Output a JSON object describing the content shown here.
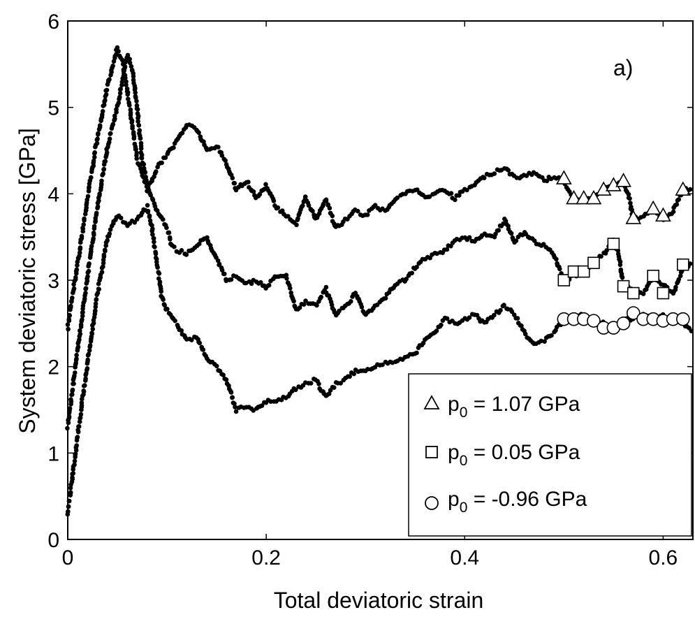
{
  "chart_data": {
    "type": "scatter",
    "title": "",
    "panel_label": "a)",
    "xlabel": "Total deviatoric strain",
    "ylabel": "System deviatoric stress [GPa]",
    "xlim": [
      0,
      0.63
    ],
    "ylim": [
      0,
      6
    ],
    "xticks": [
      0,
      0.2,
      0.4,
      0.6
    ],
    "xtick_labels": [
      "0",
      "0.2",
      "0.4",
      "0.6"
    ],
    "yticks": [
      0,
      1,
      2,
      3,
      4,
      5,
      6
    ],
    "ytick_labels": [
      "0",
      "1",
      "2",
      "3",
      "4",
      "5",
      "6"
    ],
    "grid": false,
    "legend_position": "bottom-right",
    "series": [
      {
        "name": "p0 = 1.07 GPa",
        "legend_main": "p",
        "legend_sub": "0",
        "legend_rest": " = 1.07 GPa",
        "marker": "triangle",
        "curve": [
          [
            0,
            2.45
          ],
          [
            0.01,
            3.2
          ],
          [
            0.02,
            3.95
          ],
          [
            0.03,
            4.65
          ],
          [
            0.04,
            5.25
          ],
          [
            0.05,
            5.68
          ],
          [
            0.055,
            5.55
          ],
          [
            0.06,
            5.2
          ],
          [
            0.07,
            4.4
          ],
          [
            0.08,
            4.05
          ],
          [
            0.09,
            4.3
          ],
          [
            0.1,
            4.45
          ],
          [
            0.11,
            4.6
          ],
          [
            0.12,
            4.8
          ],
          [
            0.13,
            4.75
          ],
          [
            0.14,
            4.5
          ],
          [
            0.15,
            4.55
          ],
          [
            0.16,
            4.35
          ],
          [
            0.17,
            4.05
          ],
          [
            0.18,
            4.15
          ],
          [
            0.19,
            3.95
          ],
          [
            0.2,
            4.1
          ],
          [
            0.21,
            3.85
          ],
          [
            0.22,
            3.75
          ],
          [
            0.23,
            3.65
          ],
          [
            0.24,
            3.95
          ],
          [
            0.25,
            3.7
          ],
          [
            0.26,
            3.95
          ],
          [
            0.27,
            3.6
          ],
          [
            0.28,
            3.7
          ],
          [
            0.29,
            3.8
          ],
          [
            0.3,
            3.75
          ],
          [
            0.31,
            3.85
          ],
          [
            0.32,
            3.8
          ],
          [
            0.33,
            3.95
          ],
          [
            0.34,
            4.0
          ],
          [
            0.35,
            4.05
          ],
          [
            0.36,
            3.95
          ],
          [
            0.37,
            4.0
          ],
          [
            0.38,
            4.05
          ],
          [
            0.39,
            3.95
          ],
          [
            0.4,
            4.05
          ],
          [
            0.41,
            4.1
          ],
          [
            0.42,
            4.2
          ],
          [
            0.43,
            4.25
          ],
          [
            0.44,
            4.3
          ],
          [
            0.45,
            4.2
          ],
          [
            0.46,
            4.2
          ],
          [
            0.47,
            4.25
          ],
          [
            0.48,
            4.15
          ],
          [
            0.49,
            4.2
          ],
          [
            0.5,
            4.15
          ],
          [
            0.51,
            3.95
          ],
          [
            0.52,
            3.95
          ],
          [
            0.53,
            3.95
          ],
          [
            0.54,
            4.05
          ],
          [
            0.55,
            4.1
          ],
          [
            0.56,
            4.15
          ],
          [
            0.565,
            4.0
          ],
          [
            0.57,
            3.7
          ],
          [
            0.58,
            3.75
          ],
          [
            0.59,
            3.8
          ],
          [
            0.6,
            3.7
          ],
          [
            0.61,
            3.8
          ],
          [
            0.62,
            4.05
          ],
          [
            0.63,
            4.05
          ]
        ],
        "markers": [
          [
            0.5,
            4.18
          ],
          [
            0.51,
            3.95
          ],
          [
            0.52,
            3.95
          ],
          [
            0.53,
            3.95
          ],
          [
            0.54,
            4.05
          ],
          [
            0.55,
            4.1
          ],
          [
            0.56,
            4.15
          ],
          [
            0.57,
            3.72
          ],
          [
            0.59,
            3.83
          ],
          [
            0.6,
            3.75
          ],
          [
            0.62,
            4.05
          ]
        ]
      },
      {
        "name": "p0 = 0.05 GPa",
        "legend_main": "p",
        "legend_sub": "0",
        "legend_rest": " = 0.05 GPa",
        "marker": "square",
        "curve": [
          [
            0,
            1.3
          ],
          [
            0.01,
            2.2
          ],
          [
            0.02,
            3.05
          ],
          [
            0.03,
            3.85
          ],
          [
            0.04,
            4.55
          ],
          [
            0.05,
            5.0
          ],
          [
            0.06,
            5.6
          ],
          [
            0.065,
            5.45
          ],
          [
            0.07,
            5.0
          ],
          [
            0.075,
            4.4
          ],
          [
            0.08,
            4.1
          ],
          [
            0.09,
            3.8
          ],
          [
            0.1,
            3.6
          ],
          [
            0.105,
            3.4
          ],
          [
            0.11,
            3.35
          ],
          [
            0.12,
            3.3
          ],
          [
            0.13,
            3.4
          ],
          [
            0.14,
            3.5
          ],
          [
            0.15,
            3.25
          ],
          [
            0.16,
            3.0
          ],
          [
            0.17,
            3.05
          ],
          [
            0.18,
            2.95
          ],
          [
            0.19,
            3.0
          ],
          [
            0.2,
            2.9
          ],
          [
            0.21,
            3.05
          ],
          [
            0.22,
            3.05
          ],
          [
            0.23,
            2.65
          ],
          [
            0.24,
            2.75
          ],
          [
            0.25,
            2.7
          ],
          [
            0.26,
            2.9
          ],
          [
            0.27,
            2.6
          ],
          [
            0.28,
            2.7
          ],
          [
            0.29,
            2.85
          ],
          [
            0.3,
            2.6
          ],
          [
            0.31,
            2.7
          ],
          [
            0.32,
            2.8
          ],
          [
            0.33,
            2.95
          ],
          [
            0.34,
            3.0
          ],
          [
            0.35,
            3.15
          ],
          [
            0.36,
            3.25
          ],
          [
            0.37,
            3.3
          ],
          [
            0.38,
            3.35
          ],
          [
            0.39,
            3.45
          ],
          [
            0.4,
            3.5
          ],
          [
            0.41,
            3.45
          ],
          [
            0.42,
            3.55
          ],
          [
            0.43,
            3.5
          ],
          [
            0.44,
            3.7
          ],
          [
            0.45,
            3.45
          ],
          [
            0.46,
            3.55
          ],
          [
            0.47,
            3.45
          ],
          [
            0.48,
            3.4
          ],
          [
            0.49,
            3.3
          ],
          [
            0.5,
            3.0
          ],
          [
            0.51,
            3.05
          ],
          [
            0.52,
            3.1
          ],
          [
            0.53,
            3.2
          ],
          [
            0.54,
            3.3
          ],
          [
            0.55,
            3.45
          ],
          [
            0.555,
            3.3
          ],
          [
            0.56,
            2.95
          ],
          [
            0.57,
            2.9
          ],
          [
            0.58,
            2.85
          ],
          [
            0.59,
            3.05
          ],
          [
            0.6,
            2.95
          ],
          [
            0.61,
            2.85
          ],
          [
            0.62,
            3.15
          ],
          [
            0.63,
            3.2
          ]
        ],
        "markers": [
          [
            0.5,
            3.0
          ],
          [
            0.51,
            3.1
          ],
          [
            0.52,
            3.1
          ],
          [
            0.53,
            3.2
          ],
          [
            0.55,
            3.42
          ],
          [
            0.56,
            2.93
          ],
          [
            0.57,
            2.85
          ],
          [
            0.59,
            3.05
          ],
          [
            0.6,
            2.85
          ],
          [
            0.62,
            3.18
          ]
        ]
      },
      {
        "name": "p0 = -0.96 GPa",
        "legend_main": "p",
        "legend_sub": "0",
        "legend_rest": " = -0.96 GPa",
        "marker": "circle",
        "curve": [
          [
            0,
            0.3
          ],
          [
            0.01,
            1.2
          ],
          [
            0.02,
            2.05
          ],
          [
            0.03,
            2.85
          ],
          [
            0.04,
            3.5
          ],
          [
            0.05,
            3.75
          ],
          [
            0.06,
            3.65
          ],
          [
            0.07,
            3.7
          ],
          [
            0.08,
            3.85
          ],
          [
            0.085,
            3.6
          ],
          [
            0.09,
            3.2
          ],
          [
            0.095,
            2.8
          ],
          [
            0.1,
            2.65
          ],
          [
            0.11,
            2.5
          ],
          [
            0.12,
            2.3
          ],
          [
            0.13,
            2.35
          ],
          [
            0.14,
            2.1
          ],
          [
            0.15,
            2.0
          ],
          [
            0.16,
            1.85
          ],
          [
            0.17,
            1.5
          ],
          [
            0.18,
            1.55
          ],
          [
            0.19,
            1.5
          ],
          [
            0.2,
            1.6
          ],
          [
            0.21,
            1.6
          ],
          [
            0.22,
            1.65
          ],
          [
            0.23,
            1.75
          ],
          [
            0.24,
            1.8
          ],
          [
            0.25,
            1.85
          ],
          [
            0.26,
            1.65
          ],
          [
            0.27,
            1.8
          ],
          [
            0.28,
            1.85
          ],
          [
            0.29,
            1.95
          ],
          [
            0.3,
            1.95
          ],
          [
            0.31,
            2.0
          ],
          [
            0.32,
            2.05
          ],
          [
            0.33,
            2.05
          ],
          [
            0.34,
            2.1
          ],
          [
            0.35,
            2.15
          ],
          [
            0.36,
            2.3
          ],
          [
            0.37,
            2.4
          ],
          [
            0.38,
            2.55
          ],
          [
            0.39,
            2.5
          ],
          [
            0.4,
            2.55
          ],
          [
            0.41,
            2.6
          ],
          [
            0.42,
            2.5
          ],
          [
            0.43,
            2.6
          ],
          [
            0.44,
            2.7
          ],
          [
            0.45,
            2.6
          ],
          [
            0.46,
            2.4
          ],
          [
            0.47,
            2.25
          ],
          [
            0.48,
            2.3
          ],
          [
            0.49,
            2.4
          ],
          [
            0.5,
            2.55
          ],
          [
            0.51,
            2.55
          ],
          [
            0.52,
            2.6
          ],
          [
            0.53,
            2.55
          ],
          [
            0.54,
            2.5
          ],
          [
            0.55,
            2.45
          ],
          [
            0.56,
            2.55
          ],
          [
            0.57,
            2.55
          ],
          [
            0.58,
            2.6
          ],
          [
            0.59,
            2.55
          ],
          [
            0.6,
            2.6
          ],
          [
            0.61,
            2.55
          ],
          [
            0.62,
            2.5
          ],
          [
            0.63,
            2.4
          ]
        ],
        "markers": [
          [
            0.5,
            2.55
          ],
          [
            0.51,
            2.55
          ],
          [
            0.52,
            2.55
          ],
          [
            0.53,
            2.53
          ],
          [
            0.54,
            2.45
          ],
          [
            0.55,
            2.45
          ],
          [
            0.56,
            2.5
          ],
          [
            0.57,
            2.62
          ],
          [
            0.58,
            2.55
          ],
          [
            0.59,
            2.55
          ],
          [
            0.6,
            2.53
          ],
          [
            0.61,
            2.55
          ],
          [
            0.62,
            2.55
          ]
        ]
      }
    ]
  }
}
